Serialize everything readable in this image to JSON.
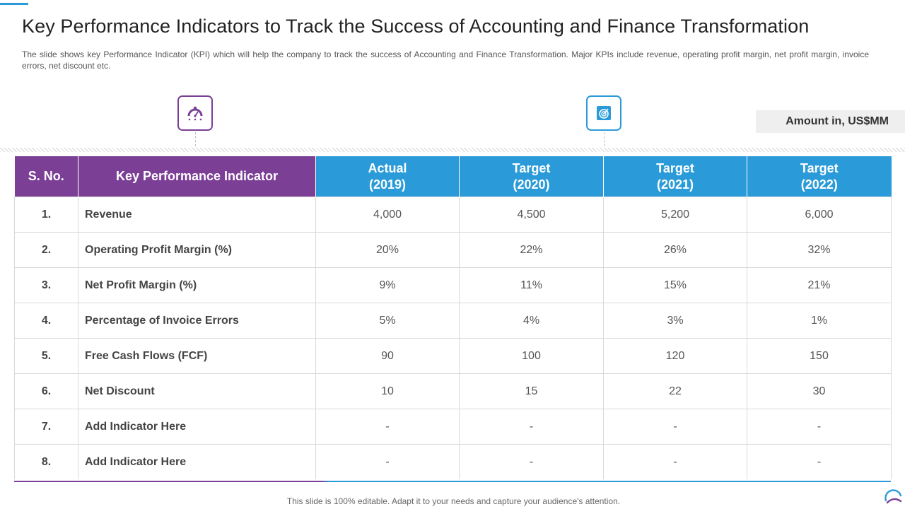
{
  "title": "Key Performance Indicators to Track the Success of Accounting and Finance Transformation",
  "subtitle": "The slide shows key Performance Indicator (KPI) which will help the company to track the success of Accounting and Finance Transformation. Major KPIs include revenue, operating profit margin, net profit margin, invoice errors, net discount etc.",
  "amount_note": "Amount in, US$MM",
  "icons": {
    "left": "performance-gauge-icon",
    "right": "target-icon"
  },
  "colors": {
    "purple": "#7b3f96",
    "blue": "#2a9bd8"
  },
  "table": {
    "headers": {
      "sno": "S. No.",
      "kpi": "Key Performance Indicator",
      "cols": [
        {
          "line1": "Actual",
          "line2": "(2019)"
        },
        {
          "line1": "Target",
          "line2": "(2020)"
        },
        {
          "line1": "Target",
          "line2": "(2021)"
        },
        {
          "line1": "Target",
          "line2": "(2022)"
        }
      ]
    },
    "rows": [
      {
        "sno": "1.",
        "kpi": "Revenue",
        "v": [
          "4,000",
          "4,500",
          "5,200",
          "6,000"
        ]
      },
      {
        "sno": "2.",
        "kpi": "Operating Profit Margin (%)",
        "v": [
          "20%",
          "22%",
          "26%",
          "32%"
        ]
      },
      {
        "sno": "3.",
        "kpi": "Net Profit Margin (%)",
        "v": [
          "9%",
          "11%",
          "15%",
          "21%"
        ]
      },
      {
        "sno": "4.",
        "kpi": "Percentage of Invoice Errors",
        "v": [
          "5%",
          "4%",
          "3%",
          "1%"
        ]
      },
      {
        "sno": "5.",
        "kpi": "Free Cash Flows (FCF)",
        "v": [
          "90",
          "100",
          "120",
          "150"
        ]
      },
      {
        "sno": "6.",
        "kpi": "Net Discount",
        "v": [
          "10",
          "15",
          "22",
          "30"
        ]
      },
      {
        "sno": "7.",
        "kpi": "Add Indicator Here",
        "v": [
          "-",
          "-",
          "-",
          "-"
        ]
      },
      {
        "sno": "8.",
        "kpi": "Add Indicator Here",
        "v": [
          "-",
          "-",
          "-",
          "-"
        ]
      }
    ]
  },
  "footer": "This slide is 100% editable. Adapt it to your needs and capture your audience's attention."
}
